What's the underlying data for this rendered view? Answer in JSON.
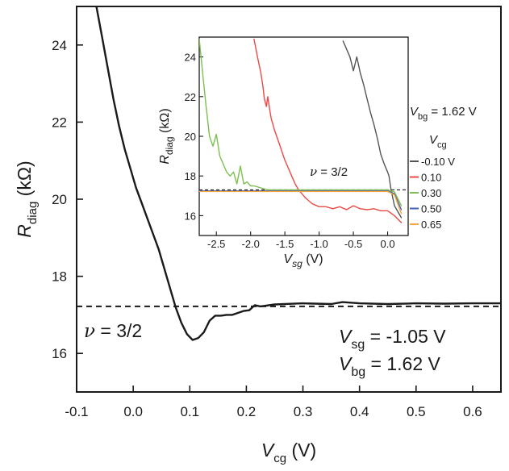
{
  "chart_data": [
    {
      "type": "line",
      "xlabel": {
        "main": "V",
        "sub": "cg",
        "unit": " (V)"
      },
      "ylabel": {
        "main": "R",
        "sub": "diag",
        "unit": " (kΩ)"
      },
      "xlim": [
        -0.1,
        0.65
      ],
      "ylim": [
        15,
        25
      ],
      "xticks": [
        -0.1,
        0.0,
        0.1,
        0.2,
        0.3,
        0.4,
        0.5,
        0.6
      ],
      "xtick_labels": [
        "-0.1",
        "0.0",
        "0.1",
        "0.2",
        "0.3",
        "0.4",
        "0.5",
        "0.6"
      ],
      "yticks": [
        16,
        18,
        20,
        22,
        24
      ],
      "ytick_labels": [
        "16",
        "18",
        "20",
        "22",
        "24"
      ],
      "reference_line": {
        "y": 17.22,
        "style": "dashed",
        "label": "ν = 3/2"
      },
      "annotations": [
        {
          "main": "V",
          "sub": "sg",
          "value": " = -1.05 V"
        },
        {
          "main": "V",
          "sub": "bg",
          "value": " = 1.62 V"
        }
      ],
      "series": [
        {
          "color": "#1a1a1a",
          "x": [
            -0.065,
            -0.055,
            -0.045,
            -0.035,
            -0.025,
            -0.015,
            -0.005,
            0.005,
            0.015,
            0.025,
            0.035,
            0.045,
            0.055,
            0.065,
            0.075,
            0.085,
            0.095,
            0.105,
            0.115,
            0.125,
            0.135,
            0.145,
            0.155,
            0.165,
            0.175,
            0.185,
            0.195,
            0.205,
            0.215,
            0.225,
            0.25,
            0.3,
            0.35,
            0.37,
            0.4,
            0.45,
            0.5,
            0.55,
            0.6,
            0.65
          ],
          "y": [
            25.0,
            24.2,
            23.4,
            22.6,
            21.9,
            21.3,
            20.8,
            20.3,
            19.9,
            19.5,
            19.1,
            18.7,
            18.2,
            17.7,
            17.2,
            16.8,
            16.5,
            16.35,
            16.4,
            16.55,
            16.85,
            16.98,
            16.98,
            17.0,
            17.0,
            17.05,
            17.1,
            17.12,
            17.25,
            17.22,
            17.27,
            17.3,
            17.28,
            17.33,
            17.3,
            17.28,
            17.3,
            17.29,
            17.3,
            17.3
          ]
        }
      ]
    },
    {
      "type": "line",
      "xlabel": {
        "main": "V",
        "sub": "sg",
        "unit": " (V)"
      },
      "ylabel": {
        "main": "R",
        "sub": "diag",
        "unit": " (kΩ)"
      },
      "xlim": [
        -2.75,
        0.3
      ],
      "ylim": [
        15,
        25
      ],
      "xticks": [
        -2.5,
        -2.0,
        -1.5,
        -1.0,
        -0.5,
        0.0
      ],
      "xtick_labels": [
        "-2.5",
        "-2.0",
        "-1.5",
        "-1.0",
        "-0.5",
        "0.0"
      ],
      "yticks": [
        16,
        18,
        20,
        22,
        24
      ],
      "ytick_labels": [
        "16",
        "18",
        "20",
        "22",
        "24"
      ],
      "reference_line": {
        "y": 17.3,
        "style": "dashed",
        "label": "ν = 3/2"
      },
      "annotation": {
        "main": "V",
        "sub": "bg",
        "value": " = 1.62 V"
      },
      "legend_title": {
        "main": "V",
        "sub": "cg"
      },
      "legend_position": "right",
      "series": [
        {
          "name": "-0.10 V",
          "color": "#555555",
          "x": [
            -0.65,
            -0.6,
            -0.55,
            -0.5,
            -0.45,
            -0.4,
            -0.35,
            -0.3,
            -0.25,
            -0.2,
            -0.15,
            -0.1,
            -0.05,
            0.0,
            0.02,
            0.05,
            0.1,
            0.2
          ],
          "y": [
            24.8,
            24.4,
            24.0,
            23.3,
            24.0,
            23.2,
            22.6,
            21.9,
            21.2,
            20.6,
            19.9,
            19.1,
            18.6,
            18.2,
            18.0,
            17.3,
            16.5,
            15.9
          ]
        },
        {
          "name": "0.10",
          "color": "#ec4a44",
          "x": [
            -1.95,
            -1.9,
            -1.85,
            -1.82,
            -1.8,
            -1.77,
            -1.75,
            -1.72,
            -1.7,
            -1.65,
            -1.6,
            -1.55,
            -1.5,
            -1.45,
            -1.4,
            -1.35,
            -1.3,
            -1.25,
            -1.2,
            -1.1,
            -1.0,
            -0.9,
            -0.8,
            -0.7,
            -0.6,
            -0.5,
            -0.4,
            -0.3,
            -0.2,
            -0.1,
            0.0,
            0.1,
            0.2
          ],
          "y": [
            24.9,
            24.0,
            23.2,
            22.5,
            21.9,
            21.5,
            22.0,
            21.3,
            20.9,
            20.3,
            19.8,
            19.3,
            18.8,
            18.4,
            18.0,
            17.6,
            17.3,
            17.1,
            16.9,
            16.6,
            16.45,
            16.45,
            16.35,
            16.45,
            16.3,
            16.5,
            16.35,
            16.3,
            16.35,
            16.25,
            16.25,
            16.0,
            15.65
          ]
        },
        {
          "name": "0.30",
          "color": "#7dbf50",
          "x": [
            -2.75,
            -2.7,
            -2.65,
            -2.6,
            -2.55,
            -2.5,
            -2.45,
            -2.4,
            -2.35,
            -2.3,
            -2.25,
            -2.2,
            -2.15,
            -2.1,
            -2.05,
            -2.0,
            -1.95,
            -1.9,
            -1.85,
            -1.8,
            -1.75,
            -1.7,
            -1.5,
            -1.0,
            -0.5,
            0.0,
            0.1,
            0.2
          ],
          "y": [
            24.9,
            23.2,
            21.5,
            20.0,
            19.5,
            20.1,
            19.0,
            18.6,
            18.2,
            18.0,
            18.2,
            17.6,
            18.5,
            17.6,
            17.7,
            17.5,
            17.5,
            17.45,
            17.4,
            17.35,
            17.3,
            17.3,
            17.3,
            17.3,
            17.3,
            17.3,
            17.2,
            16.5
          ]
        },
        {
          "name": "0.50",
          "color": "#4560b8",
          "x": [
            -2.75,
            -2.0,
            -1.0,
            0.0,
            0.1,
            0.2
          ],
          "y": [
            17.25,
            17.25,
            17.25,
            17.25,
            17.1,
            16.3
          ]
        },
        {
          "name": "0.65",
          "color": "#f5a840",
          "x": [
            -2.75,
            -2.0,
            -1.0,
            0.0,
            0.1,
            0.2
          ],
          "y": [
            17.22,
            17.22,
            17.22,
            17.22,
            17.05,
            16.1
          ]
        }
      ]
    }
  ]
}
